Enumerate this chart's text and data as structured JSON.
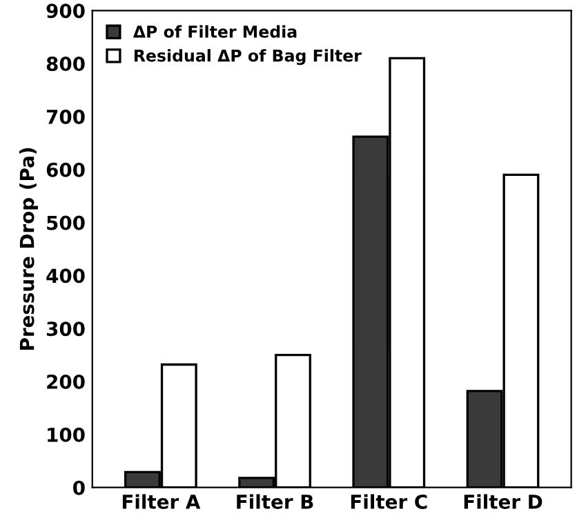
{
  "chart_data": {
    "type": "bar",
    "ylabel": "Pressure Drop (Pa)",
    "categories": [
      "Filter A",
      "Filter B",
      "Filter C",
      "Filter D"
    ],
    "series": [
      {
        "name": "ΔP of Filter Media",
        "color": "#3a3a3a",
        "values": [
          29,
          18,
          662,
          182
        ]
      },
      {
        "name": "Residual ΔP of Bag Filter",
        "color": "#ffffff",
        "values": [
          232,
          250,
          810,
          590
        ]
      }
    ],
    "ylim": [
      0,
      900
    ],
    "yticks": [
      0,
      100,
      200,
      300,
      400,
      500,
      600,
      700,
      800,
      900
    ],
    "grid": false,
    "legend": "top left"
  }
}
